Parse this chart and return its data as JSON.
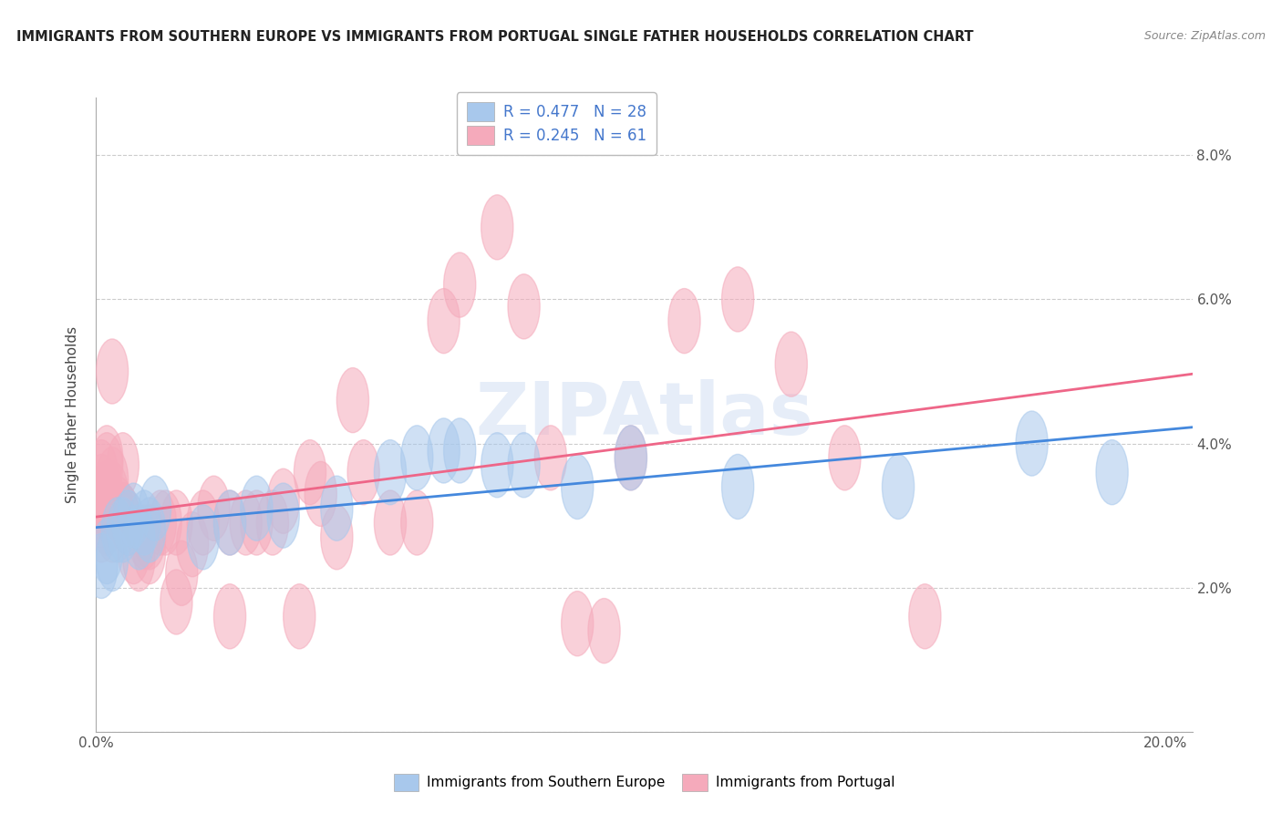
{
  "title": "IMMIGRANTS FROM SOUTHERN EUROPE VS IMMIGRANTS FROM PORTUGAL SINGLE FATHER HOUSEHOLDS CORRELATION CHART",
  "source": "Source: ZipAtlas.com",
  "ylabel": "Single Father Households",
  "xlim": [
    0.0,
    0.205
  ],
  "ylim": [
    0.0,
    0.088
  ],
  "R_blue": 0.477,
  "N_blue": 28,
  "R_pink": 0.245,
  "N_pink": 61,
  "blue_color": "#A8C8EC",
  "pink_color": "#F5AABB",
  "blue_line_color": "#4488DD",
  "pink_line_color": "#EE6688",
  "blue_label": "Immigrants from Southern Europe",
  "pink_label": "Immigrants from Portugal",
  "blue_scatter_x": [
    0.001,
    0.002,
    0.003,
    0.004,
    0.005,
    0.006,
    0.007,
    0.008,
    0.009,
    0.01,
    0.011,
    0.02,
    0.025,
    0.03,
    0.035,
    0.045,
    0.055,
    0.06,
    0.065,
    0.068,
    0.075,
    0.08,
    0.09,
    0.1,
    0.12,
    0.15,
    0.175,
    0.19
  ],
  "blue_scatter_y": [
    0.023,
    0.025,
    0.024,
    0.028,
    0.028,
    0.029,
    0.03,
    0.027,
    0.029,
    0.028,
    0.031,
    0.027,
    0.029,
    0.031,
    0.03,
    0.031,
    0.036,
    0.038,
    0.039,
    0.039,
    0.037,
    0.037,
    0.034,
    0.038,
    0.034,
    0.034,
    0.04,
    0.036
  ],
  "pink_scatter_x": [
    0.001,
    0.001,
    0.001,
    0.001,
    0.001,
    0.002,
    0.002,
    0.002,
    0.002,
    0.003,
    0.003,
    0.003,
    0.003,
    0.003,
    0.004,
    0.004,
    0.005,
    0.005,
    0.005,
    0.005,
    0.006,
    0.007,
    0.008,
    0.009,
    0.01,
    0.01,
    0.012,
    0.013,
    0.015,
    0.015,
    0.016,
    0.018,
    0.02,
    0.022,
    0.025,
    0.025,
    0.028,
    0.03,
    0.033,
    0.035,
    0.038,
    0.04,
    0.042,
    0.045,
    0.048,
    0.05,
    0.055,
    0.06,
    0.065,
    0.068,
    0.075,
    0.08,
    0.085,
    0.09,
    0.095,
    0.1,
    0.11,
    0.12,
    0.13,
    0.14,
    0.155
  ],
  "pink_scatter_y": [
    0.03,
    0.028,
    0.032,
    0.034,
    0.036,
    0.037,
    0.038,
    0.033,
    0.029,
    0.035,
    0.03,
    0.028,
    0.05,
    0.033,
    0.031,
    0.03,
    0.03,
    0.03,
    0.037,
    0.03,
    0.029,
    0.025,
    0.024,
    0.027,
    0.025,
    0.027,
    0.029,
    0.029,
    0.029,
    0.018,
    0.022,
    0.026,
    0.029,
    0.031,
    0.029,
    0.016,
    0.029,
    0.029,
    0.029,
    0.032,
    0.016,
    0.036,
    0.033,
    0.027,
    0.046,
    0.036,
    0.029,
    0.029,
    0.057,
    0.062,
    0.07,
    0.059,
    0.038,
    0.015,
    0.014,
    0.038,
    0.057,
    0.06,
    0.051,
    0.038,
    0.016
  ]
}
